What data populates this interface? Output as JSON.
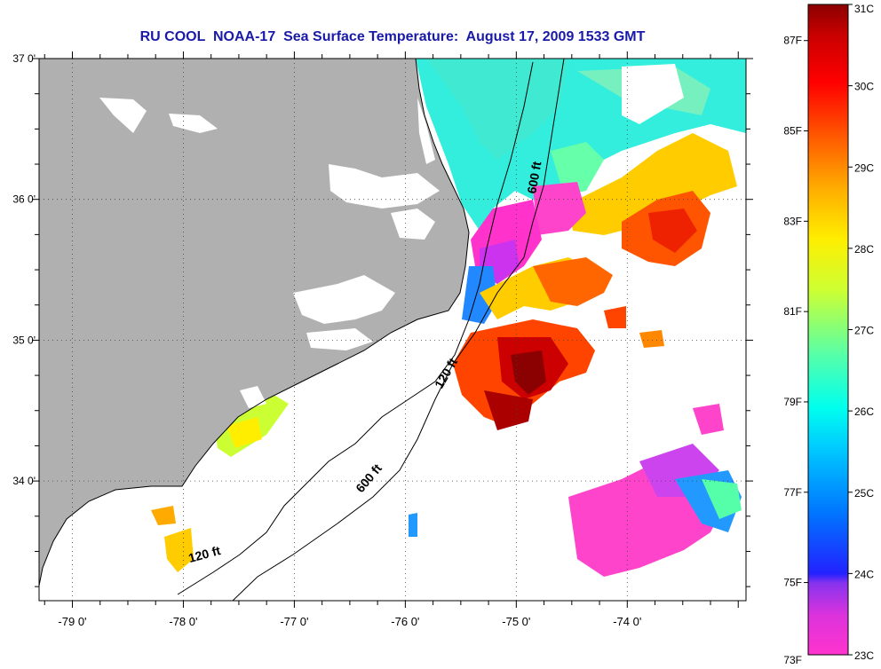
{
  "title": "RU COOL  NOAA-17  Sea Surface Temperature:  August 17, 2009 1533 GMT",
  "map": {
    "lat_ticks": [
      "37 0'",
      "36 0'",
      "35 0'",
      "34 0'"
    ],
    "lat_values": [
      37,
      36,
      35,
      34
    ],
    "lat_range": [
      33.15,
      37.0
    ],
    "lon_ticks": [
      "-79 0'",
      "-78 0'",
      "-77 0'",
      "-76 0'",
      "-75 0'",
      "-74 0'"
    ],
    "lon_values": [
      -79,
      -78,
      -77,
      -76,
      -75,
      -74
    ],
    "lon_range": [
      -79.3,
      -72.93
    ],
    "grid": true,
    "land_color": "#b0b0b0",
    "contour_labels": [
      {
        "text": "600 ft",
        "lon": -74.8,
        "lat": 36.15
      },
      {
        "text": "120 ft",
        "lon": -75.6,
        "lat": 34.75
      },
      {
        "text": "600 ft",
        "lon": -76.3,
        "lat": 34.0
      },
      {
        "text": "120 ft",
        "lon": -77.8,
        "lat": 33.45
      }
    ]
  },
  "colorbar": {
    "fahrenheit_labels": [
      "87F",
      "85F",
      "83F",
      "81F",
      "79F",
      "77F",
      "75F",
      "73F"
    ],
    "celsius_labels": [
      "31C",
      "30C",
      "29C",
      "28C",
      "27C",
      "26C",
      "25C",
      "24C",
      "23C"
    ],
    "range_c": [
      23,
      31
    ],
    "colors": [
      "#ff33cc",
      "#cc33ee",
      "#2233ff",
      "#00aaff",
      "#00ffff",
      "#55ffbb",
      "#ccff33",
      "#ffee00",
      "#ffaa00",
      "#ff5500",
      "#ff0000",
      "#cc0000",
      "#8b0000"
    ]
  }
}
